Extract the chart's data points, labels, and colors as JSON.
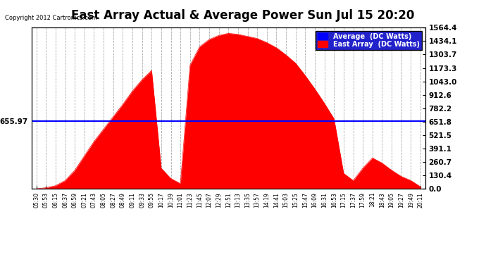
{
  "title": "East Array Actual & Average Power Sun Jul 15 20:20",
  "copyright": "Copyright 2012 Cartronics.com",
  "average_value": 655.97,
  "y_max": 1564.4,
  "y_min": 0.0,
  "y_ticks": [
    0.0,
    130.4,
    260.7,
    391.1,
    521.5,
    651.8,
    782.2,
    912.6,
    1043.0,
    1173.3,
    1303.7,
    1434.1,
    1564.4
  ],
  "x_labels": [
    "05:30",
    "05:53",
    "06:15",
    "06:37",
    "06:59",
    "07:21",
    "07:43",
    "08:05",
    "08:27",
    "08:49",
    "09:11",
    "09:33",
    "09:55",
    "10:17",
    "10:39",
    "11:01",
    "11:23",
    "11:45",
    "12:07",
    "12:29",
    "12:51",
    "13:13",
    "13:35",
    "13:57",
    "14:19",
    "14:41",
    "15:03",
    "15:25",
    "15:47",
    "16:09",
    "16:31",
    "16:53",
    "17:15",
    "17:37",
    "17:59",
    "18:21",
    "18:43",
    "19:05",
    "19:27",
    "19:49",
    "20:11"
  ],
  "background_color": "#ffffff",
  "grid_color": "#aaaaaa",
  "fill_color": "#ff0000",
  "line_color": "#0000ff",
  "title_fontsize": 12,
  "legend_blue_label": "Average  (DC Watts)",
  "legend_red_label": "East Array  (DC Watts)",
  "left_annotation": "655.97",
  "y_vals": [
    0,
    10,
    30,
    80,
    180,
    320,
    460,
    580,
    700,
    820,
    950,
    1060,
    1150,
    200,
    100,
    50,
    1200,
    1380,
    1450,
    1490,
    1510,
    1500,
    1480,
    1460,
    1420,
    1370,
    1300,
    1220,
    1100,
    970,
    830,
    680,
    150,
    80,
    200,
    300,
    250,
    180,
    120,
    80,
    20
  ]
}
